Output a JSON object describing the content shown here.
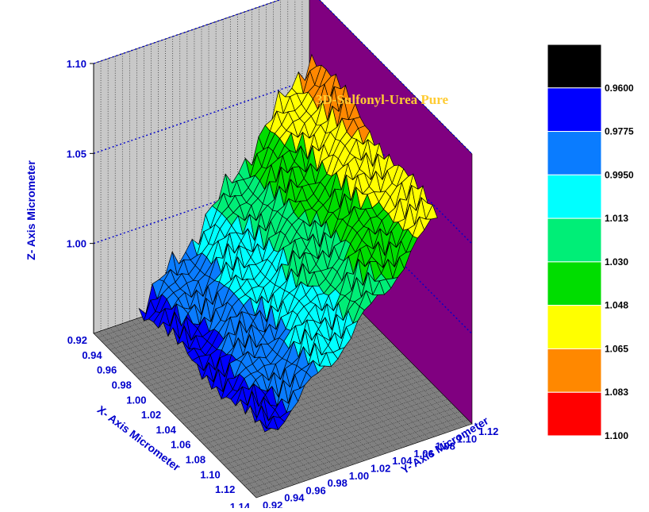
{
  "chart_data": {
    "type": "surface3d",
    "title": "3D-Sulfonyl-Urea  Pure",
    "x_axis": {
      "label": "X- Axis  Micrometer",
      "range": [
        0.92,
        1.14
      ],
      "ticks": [
        "0.92",
        "0.94",
        "0.96",
        "0.98",
        "1.00",
        "1.02",
        "1.04",
        "1.06",
        "1.08",
        "1.10",
        "1.12",
        "1.14"
      ]
    },
    "y_axis": {
      "label": "Y- Axis Micrometer",
      "range": [
        0.92,
        1.12
      ],
      "ticks": [
        "0.92",
        "0.94",
        "0.96",
        "0.98",
        "1.00",
        "1.02",
        "1.04",
        "1.06",
        "1.08",
        "1.10",
        "1.12"
      ]
    },
    "z_axis": {
      "label": "Z- Axis  Micrometer",
      "range": [
        0.95,
        1.1
      ],
      "ticks": [
        "1.00",
        "1.05",
        "1.10"
      ]
    },
    "colorbar": {
      "labels": [
        "0.9600",
        "0.9775",
        "0.9950",
        "1.013",
        "1.030",
        "1.048",
        "1.065",
        "1.083",
        "1.100"
      ],
      "colors": [
        "#000000",
        "#0000ff",
        "#0a7cff",
        "#00ffff",
        "#00ee77",
        "#00dd00",
        "#ffff00",
        "#ff8800",
        "#ff0000"
      ]
    },
    "backwall_colors": {
      "left": "#c8c8c8",
      "right": "#800080",
      "floor": "#808080",
      "grid_dots": "#0000cc"
    },
    "grid": true,
    "surface_z_summary": {
      "low_corner_x_y": [
        0.95,
        0.95
      ],
      "low_corner_z": 0.97,
      "high_corner_x_y": [
        0.96,
        1.1
      ],
      "high_corner_z": 1.08
    }
  }
}
